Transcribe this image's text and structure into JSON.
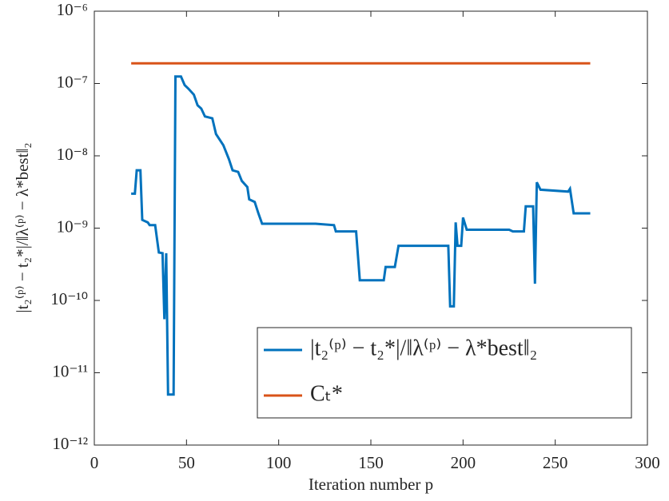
{
  "chart_data": {
    "type": "line",
    "xlabel": "Iteration number p",
    "ylabel": "|t₂⁽ᵖ⁾ − t₂*|/‖λ⁽ᵖ⁾ − λ*best‖₂",
    "xlim": [
      0,
      300
    ],
    "xticks": [
      0,
      50,
      100,
      150,
      200,
      250,
      300
    ],
    "ylim": [
      1e-12,
      1e-06
    ],
    "yticks": [
      {
        "value": 1e-12,
        "label": "10⁻¹²"
      },
      {
        "value": 1e-11,
        "label": "10⁻¹¹"
      },
      {
        "value": 1e-10,
        "label": "10⁻¹⁰"
      },
      {
        "value": 1e-09,
        "label": "10⁻⁹"
      },
      {
        "value": 1e-08,
        "label": "10⁻⁸"
      },
      {
        "value": 1e-07,
        "label": "10⁻⁷"
      },
      {
        "value": 1e-06,
        "label": "10⁻⁶"
      }
    ],
    "log_y": true,
    "grid": false,
    "legend": "lower right",
    "series": [
      {
        "name": "|t₂⁽ᵖ⁾ − t₂*|/‖λ⁽ᵖ⁾ − λ*best‖₂",
        "color": "#0072bd",
        "x": [
          20,
          22,
          23,
          25,
          26,
          29,
          30,
          33,
          35,
          37,
          38,
          39,
          40,
          43,
          44,
          47,
          49,
          51,
          54,
          56,
          58,
          60,
          64,
          66,
          70,
          73,
          75,
          78,
          80,
          83,
          84,
          87,
          89,
          91,
          120,
          130,
          131,
          142,
          144,
          157,
          158,
          163,
          165,
          192,
          193,
          195,
          196,
          197,
          199,
          200,
          202,
          225,
          227,
          233,
          234,
          238,
          239,
          240,
          242,
          257,
          258,
          260,
          269
        ],
        "values": [
          3e-09,
          3e-09,
          6.3e-09,
          6.3e-09,
          1.3e-09,
          1.2e-09,
          1.1e-09,
          1.1e-09,
          4.6e-10,
          4.5e-10,
          5.5e-11,
          4.5e-10,
          5e-12,
          5e-12,
          1.25e-07,
          1.25e-07,
          9.5e-08,
          8.5e-08,
          7e-08,
          5e-08,
          4.5e-08,
          3.5e-08,
          3.3e-08,
          2e-08,
          1.4e-08,
          9e-09,
          6.3e-09,
          6e-09,
          4.5e-09,
          3.7e-09,
          2.5e-09,
          2.3e-09,
          1.6e-09,
          1.15e-09,
          1.15e-09,
          1.1e-09,
          9e-10,
          9e-10,
          1.9e-10,
          1.9e-10,
          2.9e-10,
          2.9e-10,
          5.7e-10,
          5.7e-10,
          8.3e-11,
          8.3e-11,
          1.2e-09,
          5.7e-10,
          5.7e-10,
          1.4e-09,
          9.5e-10,
          9.5e-10,
          9e-10,
          9e-10,
          2e-09,
          2e-09,
          1.7e-10,
          4.3e-09,
          3.4e-09,
          3.2e-09,
          3.5e-09,
          1.6e-09,
          1.6e-09
        ]
      },
      {
        "name": "Cₜ*",
        "color": "#d95319",
        "x": [
          20,
          269
        ],
        "values": [
          1.9e-07,
          1.9e-07
        ]
      }
    ]
  }
}
